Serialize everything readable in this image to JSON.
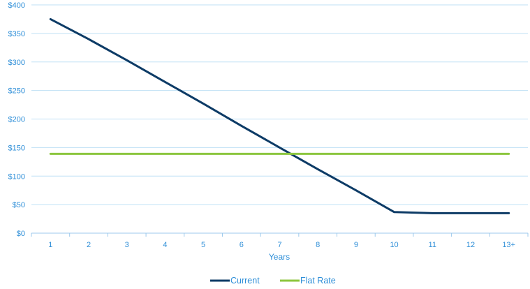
{
  "chart_data": {
    "type": "line",
    "title": "",
    "xlabel": "Years",
    "ylabel": "",
    "categories": [
      "1",
      "2",
      "3",
      "4",
      "5",
      "6",
      "7",
      "8",
      "9",
      "10",
      "11",
      "12",
      "13+"
    ],
    "y_ticks": [
      "$0",
      "$50",
      "$100",
      "$150",
      "$200",
      "$250",
      "$300",
      "$350",
      "$400"
    ],
    "ylim": [
      0,
      400
    ],
    "grid": true,
    "legend_position": "bottom",
    "series": [
      {
        "name": "Current",
        "color": "#0d3b66",
        "values": [
          375,
          340,
          303,
          265,
          227,
          188,
          150,
          112,
          75,
          37,
          35,
          35,
          35
        ]
      },
      {
        "name": "Flat Rate",
        "color": "#8cc63f",
        "values": [
          139,
          139,
          139,
          139,
          139,
          139,
          139,
          139,
          139,
          139,
          139,
          139,
          139
        ]
      }
    ],
    "colors": {
      "grid": "#bfe0f5",
      "axis": "#9dc9ec",
      "text": "#2f8fd8"
    }
  }
}
